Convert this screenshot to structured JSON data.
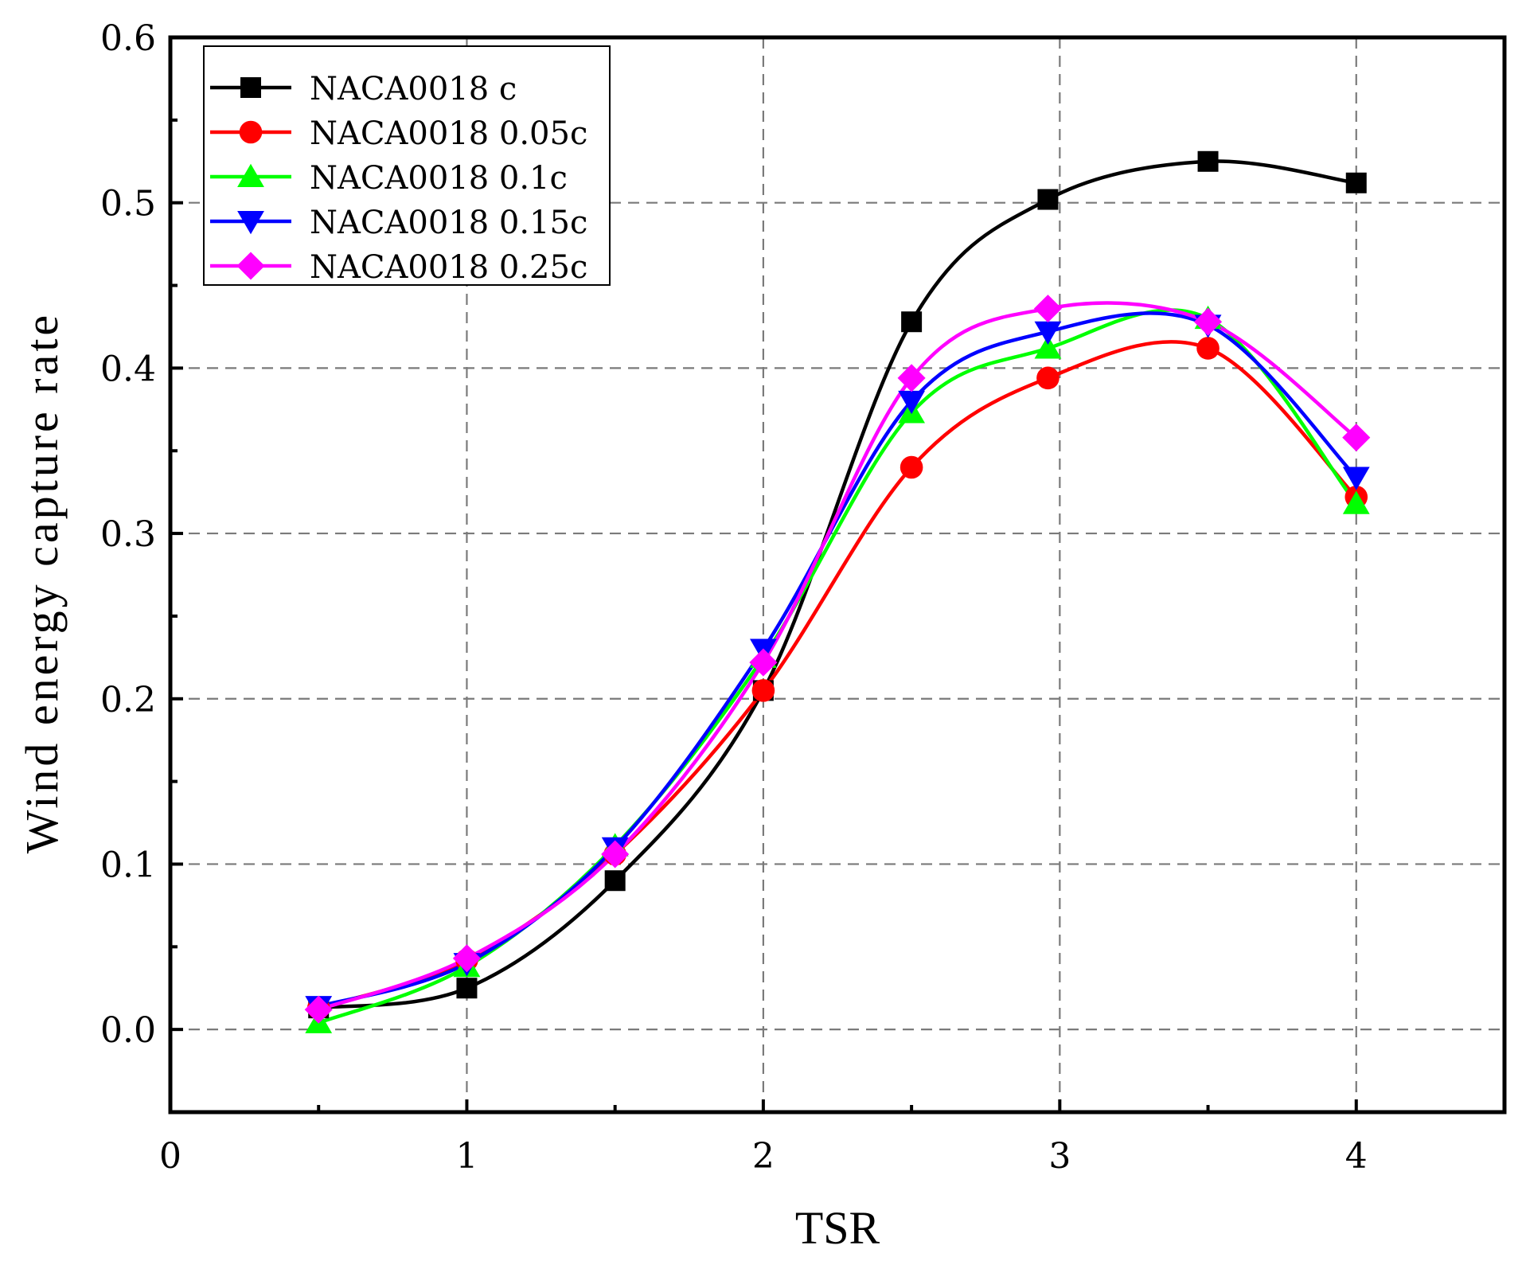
{
  "chart_data": {
    "type": "line",
    "title": "",
    "xlabel": "TSR",
    "ylabel": "Wind energy capture rate",
    "xlim": [
      0,
      4.5
    ],
    "ylim": [
      -0.05,
      0.6
    ],
    "xticks": [
      0,
      1,
      2,
      3,
      4
    ],
    "xtick_labels": [
      "0",
      "1",
      "2",
      "3",
      "4"
    ],
    "yticks": [
      0.0,
      0.1,
      0.2,
      0.3,
      0.4,
      0.5,
      0.6
    ],
    "ytick_labels": [
      "0.0",
      "0.1",
      "0.2",
      "0.3",
      "0.4",
      "0.5",
      "0.6"
    ],
    "grid": true,
    "legend_position": "top-left",
    "series": [
      {
        "name": "NACA0018 c",
        "color": "#000000",
        "marker": "square",
        "x": [
          0.5,
          1.0,
          1.5,
          2.0,
          2.5,
          2.96,
          3.5,
          4.0
        ],
        "y": [
          0.013,
          0.025,
          0.09,
          0.205,
          0.428,
          0.502,
          0.525,
          0.512
        ]
      },
      {
        "name": "NACA0018 0.05c",
        "color": "#ff0000",
        "marker": "circle",
        "x": [
          0.5,
          1.0,
          1.5,
          2.0,
          2.5,
          2.96,
          3.5,
          4.0
        ],
        "y": [
          0.013,
          0.042,
          0.106,
          0.205,
          0.34,
          0.394,
          0.412,
          0.322
        ]
      },
      {
        "name": "NACA0018 0.1c",
        "color": "#00ff00",
        "marker": "triangle-up",
        "x": [
          0.5,
          1.0,
          1.5,
          2.0,
          2.5,
          2.96,
          3.5,
          4.0
        ],
        "y": [
          0.004,
          0.038,
          0.111,
          0.225,
          0.373,
          0.412,
          0.43,
          0.318
        ]
      },
      {
        "name": "NACA0018 0.15c",
        "color": "#0000ff",
        "marker": "triangle-down",
        "x": [
          0.5,
          1.0,
          1.5,
          2.0,
          2.5,
          2.96,
          3.5,
          4.0
        ],
        "y": [
          0.014,
          0.04,
          0.11,
          0.23,
          0.38,
          0.422,
          0.426,
          0.334
        ]
      },
      {
        "name": "NACA0018 0.25c",
        "color": "#ff00ff",
        "marker": "diamond",
        "x": [
          0.5,
          1.0,
          1.5,
          2.0,
          2.5,
          2.96,
          3.5,
          4.0
        ],
        "y": [
          0.012,
          0.043,
          0.106,
          0.222,
          0.394,
          0.436,
          0.428,
          0.358
        ]
      }
    ]
  }
}
